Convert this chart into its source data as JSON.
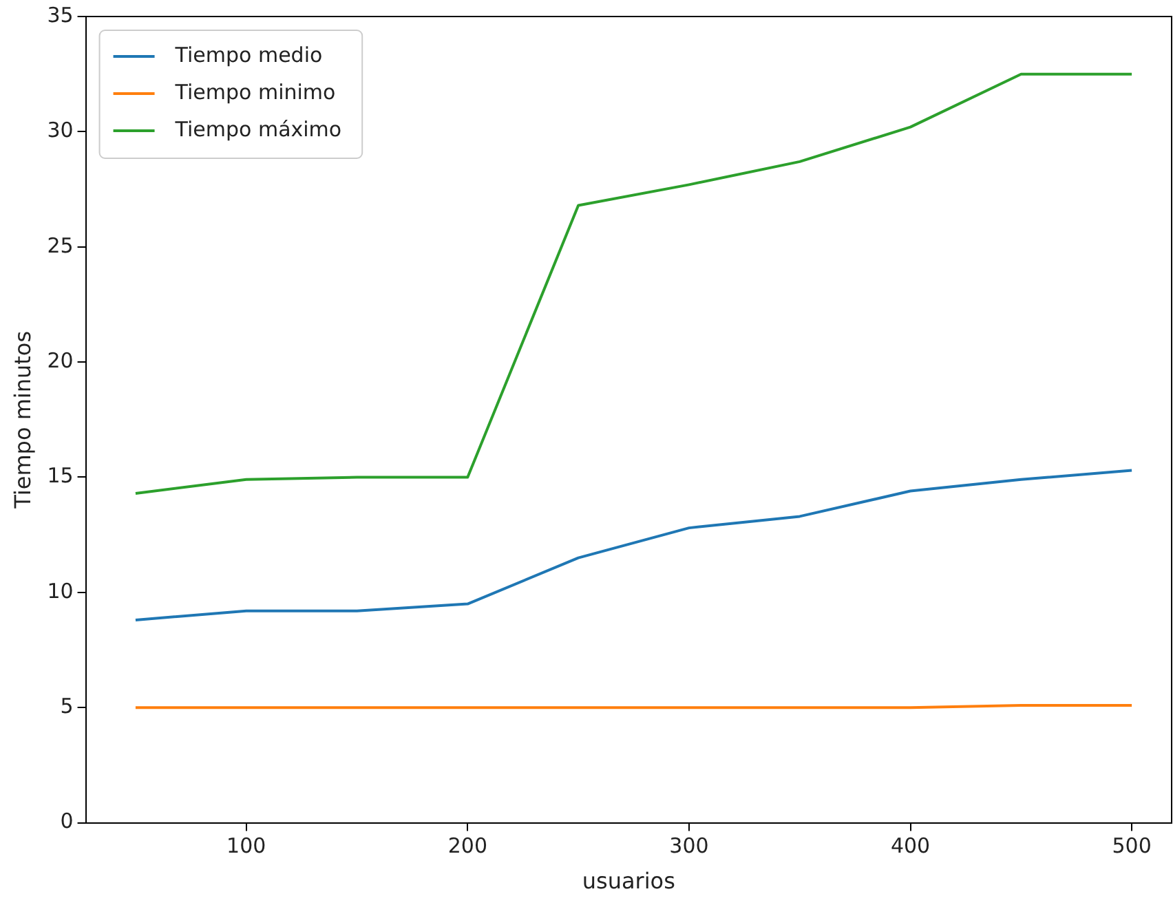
{
  "chart_data": {
    "type": "line",
    "xlabel": "usuarios",
    "ylabel": "Tiempo minutos",
    "x": [
      50,
      100,
      150,
      200,
      250,
      300,
      350,
      400,
      450,
      500
    ],
    "series": [
      {
        "name": "Tiempo medio",
        "color": "#1f77b4",
        "values": [
          8.8,
          9.2,
          9.2,
          9.5,
          11.5,
          12.8,
          13.3,
          14.4,
          14.9,
          15.3
        ]
      },
      {
        "name": "Tiempo minimo",
        "color": "#ff7f0e",
        "values": [
          5.0,
          5.0,
          5.0,
          5.0,
          5.0,
          5.0,
          5.0,
          5.0,
          5.1,
          5.1
        ]
      },
      {
        "name": "Tiempo máximo",
        "color": "#2ca02c",
        "values": [
          14.3,
          14.9,
          15.0,
          15.0,
          26.8,
          27.7,
          28.7,
          30.2,
          32.5,
          32.5
        ]
      }
    ],
    "xlim": [
      27.5,
      518
    ],
    "xticks": [
      100,
      200,
      300,
      400,
      500
    ],
    "ylim": [
      0,
      35
    ],
    "yticks": [
      0,
      5,
      10,
      15,
      20,
      25,
      30,
      35
    ],
    "grid": false,
    "legend": "top left",
    "marker": "none",
    "line_style": "solid"
  }
}
